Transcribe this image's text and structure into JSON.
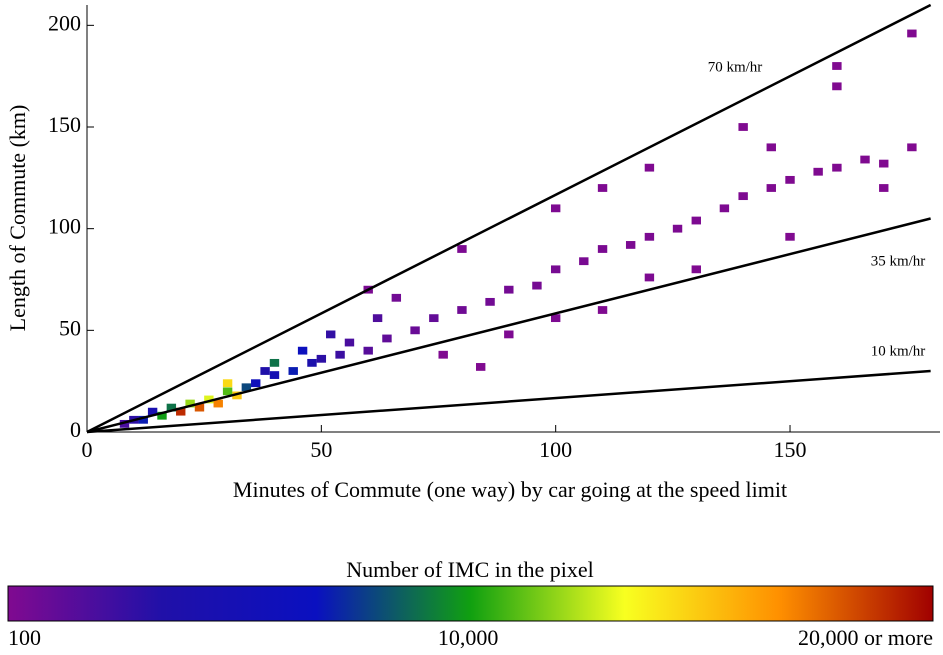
{
  "chart_data": {
    "type": "heatmap",
    "xlabel": "Minutes of Commute (one way) by car going at the speed limit",
    "ylabel": "Length of Commute (km)",
    "xlim": [
      0,
      182
    ],
    "ylim": [
      0,
      210
    ],
    "xticks": [
      0,
      50,
      100,
      150
    ],
    "yticks": [
      0,
      50,
      100,
      150,
      200
    ],
    "cells": {
      "x": [
        20,
        24,
        28,
        32,
        26,
        22,
        30,
        18,
        34,
        36,
        40,
        44,
        48,
        50,
        54,
        46,
        40,
        30,
        16,
        12,
        10,
        8,
        14,
        38,
        56,
        60,
        64,
        70,
        74,
        80,
        86,
        90,
        96,
        100,
        106,
        110,
        116,
        120,
        126,
        130,
        136,
        140,
        146,
        150,
        156,
        160,
        166,
        170,
        176,
        60,
        80,
        100,
        120,
        140,
        160,
        176,
        90,
        110,
        130,
        150,
        170,
        84,
        76,
        62,
        52,
        66,
        110,
        146,
        160,
        120,
        100
      ],
      "y": [
        10,
        12,
        14,
        18,
        16,
        14,
        20,
        12,
        22,
        24,
        28,
        30,
        34,
        36,
        38,
        40,
        34,
        24,
        8,
        6,
        6,
        4,
        10,
        30,
        44,
        40,
        46,
        50,
        56,
        60,
        64,
        70,
        72,
        80,
        84,
        90,
        92,
        96,
        100,
        104,
        110,
        116,
        120,
        124,
        128,
        130,
        134,
        132,
        140,
        70,
        90,
        110,
        130,
        150,
        170,
        196,
        48,
        60,
        80,
        96,
        120,
        32,
        38,
        56,
        48,
        66,
        120,
        140,
        180,
        76,
        56
      ],
      "values": [
        19000,
        18000,
        17000,
        15000,
        13000,
        12000,
        11000,
        9000,
        8000,
        6000,
        5000,
        7000,
        4000,
        3000,
        2500,
        6500,
        9000,
        14500,
        10000,
        7000,
        3000,
        2000,
        4500,
        3500,
        2000,
        1500,
        1200,
        900,
        1100,
        700,
        600,
        500,
        450,
        400,
        350,
        300,
        280,
        260,
        250,
        220,
        200,
        180,
        160,
        150,
        140,
        130,
        120,
        110,
        105,
        300,
        250,
        200,
        150,
        120,
        110,
        100,
        200,
        150,
        120,
        110,
        100,
        100,
        150,
        1800,
        2800,
        600,
        180,
        140,
        100,
        200,
        220
      ]
    },
    "lines": [
      {
        "name": "70 km/hr",
        "color": "#000000",
        "x": [
          0,
          180
        ],
        "y": [
          0,
          210
        ]
      },
      {
        "name": "35 km/hr",
        "color": "#000000",
        "x": [
          0,
          180
        ],
        "y": [
          0,
          105
        ]
      },
      {
        "name": "10 km/hr",
        "color": "#000000",
        "x": [
          0,
          180
        ],
        "y": [
          0,
          30
        ]
      }
    ],
    "colorbar": {
      "title": "Number of IMC in the pixel",
      "clim": [
        100,
        20000
      ],
      "colors": [
        "#800a90",
        "#2010a8",
        "#0a10c0",
        "#10a010",
        "#f8ff20",
        "#ff9000",
        "#a00000"
      ],
      "ticks": [
        {
          "value": 100,
          "label": "100"
        },
        {
          "value": 10000,
          "label": "10,000"
        },
        {
          "value": 20000,
          "label": "20,000 or more"
        }
      ]
    }
  }
}
